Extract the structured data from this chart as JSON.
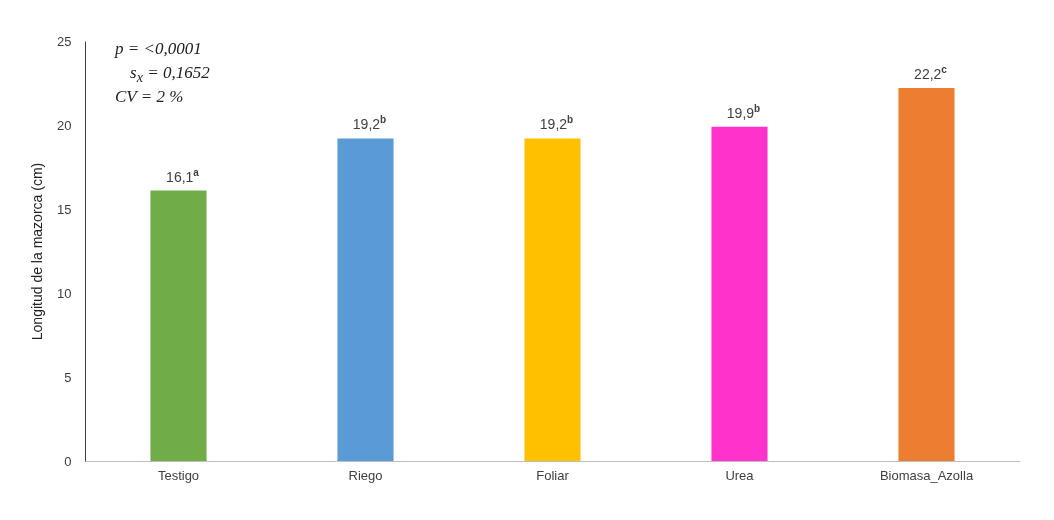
{
  "chart_data": {
    "type": "bar",
    "ylabel": "Longitud de la mazorca (cm)",
    "categories": [
      "Testigo",
      "Riego",
      "Foliar",
      "Urea",
      "Biomasa_Azolla"
    ],
    "values": [
      16.1,
      19.2,
      19.2,
      19.9,
      22.2
    ],
    "colors": [
      "#70ad47",
      "#5b9bd5",
      "#ffc000",
      "#ff33cc",
      "#ed7d31"
    ],
    "value_labels": [
      "16,1$^{a}$",
      "19,2$^{b}$",
      "19,2$^{b}$",
      "19,9$^{b}$",
      "22,2$^{c}$"
    ],
    "ylim": [
      0,
      25
    ],
    "yticks": [
      0,
      5,
      10,
      15,
      20,
      25
    ],
    "grid": false,
    "annotations": [
      "p = <0,0001",
      "s$_{x}$ = 0,1652",
      "CV = 2 %"
    ]
  }
}
